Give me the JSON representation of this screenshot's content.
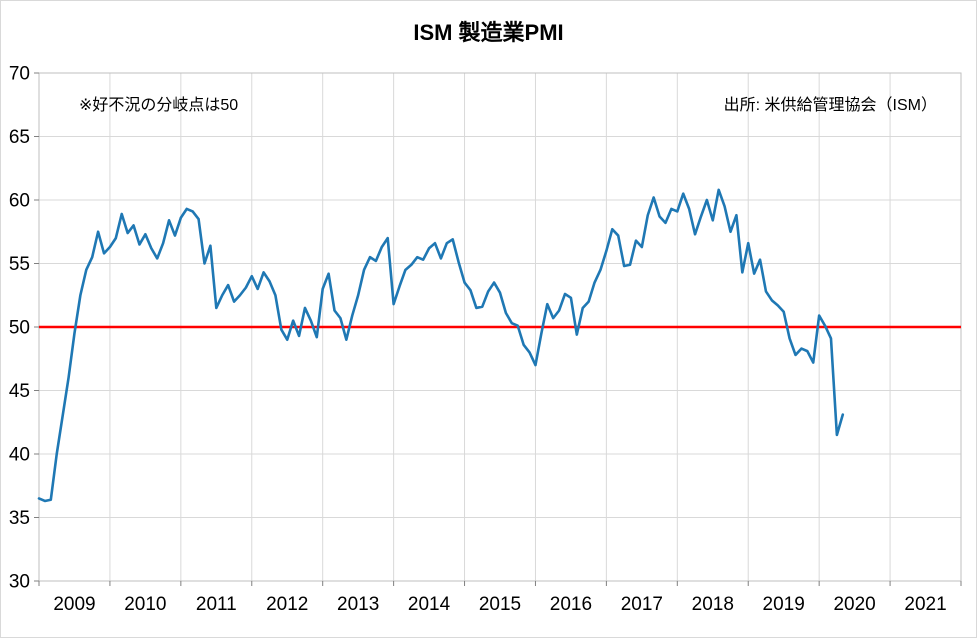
{
  "chart_data": {
    "type": "line",
    "title": "ISM 製造業PMI",
    "annotation_left": "※好不況の分岐点は50",
    "annotation_right": "出所: 米供給管理協会（ISM）",
    "ylim": [
      30,
      70
    ],
    "y_ticks": [
      30,
      35,
      40,
      45,
      50,
      55,
      60,
      65,
      70
    ],
    "x_start_year": 2009,
    "x_end_year": 2022,
    "x_tick_labels": [
      "2009",
      "2010",
      "2011",
      "2012",
      "2013",
      "2014",
      "2015",
      "2016",
      "2017",
      "2018",
      "2019",
      "2020",
      "2021"
    ],
    "grid": true,
    "gridline_color": "#D9D9D9",
    "axis_color": "#BFBFBF",
    "tick_color": "#808080",
    "label_color": "#000000",
    "reference_line": {
      "value": 50,
      "color": "#FF0000",
      "label": "50"
    },
    "series": [
      {
        "name": "ISM製造業PMI",
        "color": "#1F78B4",
        "start": "2009-01",
        "frequency": "monthly",
        "values": [
          36.5,
          36.3,
          36.4,
          40.0,
          43.0,
          46.0,
          49.5,
          52.5,
          54.5,
          55.5,
          57.5,
          55.8,
          56.3,
          57.0,
          58.9,
          57.4,
          58.0,
          56.5,
          57.3,
          56.2,
          55.4,
          56.6,
          58.4,
          57.2,
          58.6,
          59.3,
          59.1,
          58.5,
          55.0,
          56.4,
          51.5,
          52.5,
          53.3,
          52.0,
          52.5,
          53.1,
          54.0,
          53.0,
          54.3,
          53.6,
          52.5,
          49.8,
          49.0,
          50.5,
          49.3,
          51.5,
          50.5,
          49.2,
          53.0,
          54.2,
          51.3,
          50.7,
          49.0,
          50.9,
          52.5,
          54.5,
          55.5,
          55.2,
          56.3,
          57.0,
          51.8,
          53.2,
          54.5,
          54.9,
          55.5,
          55.3,
          56.2,
          56.6,
          55.4,
          56.6,
          56.9,
          55.1,
          53.5,
          52.9,
          51.5,
          51.6,
          52.8,
          53.5,
          52.7,
          51.1,
          50.3,
          50.1,
          48.6,
          48.0,
          47.0,
          49.5,
          51.8,
          50.7,
          51.3,
          52.6,
          52.3,
          49.4,
          51.5,
          52.0,
          53.5,
          54.5,
          56.0,
          57.7,
          57.2,
          54.8,
          54.9,
          56.8,
          56.3,
          58.8,
          60.2,
          58.7,
          58.2,
          59.3,
          59.1,
          60.5,
          59.3,
          57.3,
          58.7,
          60.0,
          58.4,
          60.8,
          59.5,
          57.5,
          58.8,
          54.3,
          56.6,
          54.2,
          55.3,
          52.8,
          52.1,
          51.7,
          51.2,
          49.1,
          47.8,
          48.3,
          48.1,
          47.2,
          50.9,
          50.1,
          49.1,
          41.5,
          43.1
        ]
      }
    ]
  }
}
